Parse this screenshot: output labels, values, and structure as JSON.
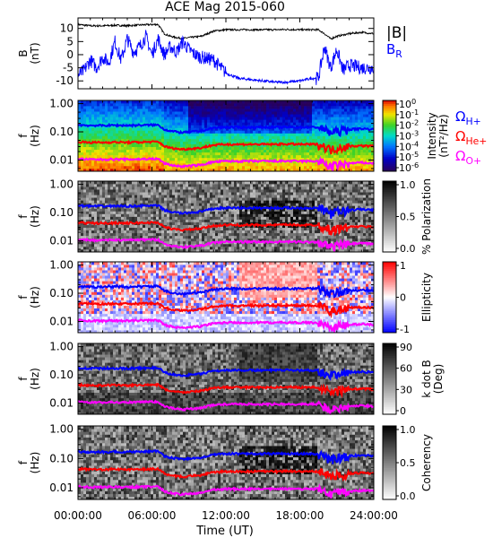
{
  "title": "ACE Mag 2015-060",
  "chart_data": [
    {
      "type": "line",
      "panel": "magnetic-field",
      "title": "ACE Mag 2015-060",
      "ylabel_top": "B",
      "ylabel_bottom": "(nT)",
      "ylim": [
        -13,
        14
      ],
      "yticks": [
        {
          "v": 10,
          "l": "10"
        },
        {
          "v": 5,
          "l": "5"
        },
        {
          "v": 0,
          "l": "0"
        },
        {
          "v": -5,
          "l": "-5"
        },
        {
          "v": -10,
          "l": "-10"
        }
      ],
      "xlim": [
        0,
        24
      ],
      "series": [
        {
          "name": "|B|",
          "color": "#000000",
          "x": [
            0,
            1,
            2,
            3,
            4,
            5,
            6,
            6.5,
            7,
            7.5,
            8,
            8.5,
            9,
            10,
            11,
            12,
            13,
            14,
            15,
            16,
            17,
            18,
            19,
            19.5,
            20,
            20.5,
            21,
            22,
            23,
            24
          ],
          "values": [
            11.5,
            11,
            11,
            11.2,
            11,
            11.3,
            11.5,
            11.5,
            8,
            7,
            6.5,
            6.2,
            6.5,
            7,
            9,
            9.5,
            9.5,
            9.5,
            9.5,
            9.5,
            9.6,
            9.5,
            9.5,
            9.5,
            8,
            6,
            7,
            8,
            8.5,
            8
          ]
        },
        {
          "name": "B_R",
          "color": "#0000ff",
          "x": [
            0,
            0.5,
            1,
            1.5,
            2,
            2.5,
            3,
            3.5,
            4,
            4.5,
            5,
            5.5,
            6,
            6.5,
            7,
            7.5,
            8,
            8.5,
            9,
            9.5,
            10,
            11,
            12,
            13,
            14,
            15,
            16,
            17,
            18,
            19,
            19.5,
            20,
            20.5,
            21,
            21.5,
            22,
            23,
            24
          ],
          "values": [
            -8,
            -6,
            -2,
            -5,
            -1,
            -3,
            5,
            -2,
            6,
            1,
            3,
            7,
            0,
            6,
            0,
            3,
            1,
            5,
            2,
            0,
            -1,
            -2,
            -7,
            -9,
            -9.5,
            -10,
            -10.5,
            -10.5,
            -10,
            -9,
            -9,
            3,
            -5,
            2,
            -6,
            -4,
            -5,
            -5
          ]
        }
      ],
      "legend": [
        {
          "label": "|B|",
          "color": "#000000"
        },
        {
          "label": "B",
          "sub": "R",
          "color": "#0000ff"
        }
      ]
    },
    {
      "type": "heatmap",
      "panel": "intensity",
      "ylabel_top": "f",
      "ylabel_bottom": "(Hz)",
      "yticks": [
        "1.00",
        "0.10",
        "0.01"
      ],
      "colorbar_title": "Intensity",
      "colorbar_unit": "(nT²/Hz)",
      "colorbar_ticks": [
        {
          "b": "10",
          "e": "0"
        },
        {
          "b": "10",
          "e": "-1"
        },
        {
          "b": "10",
          "e": "-2"
        },
        {
          "b": "10",
          "e": "-3"
        },
        {
          "b": "10",
          "e": "-4"
        },
        {
          "b": "10",
          "e": "-5"
        },
        {
          "b": "10",
          "e": "-6"
        }
      ],
      "colormap": "rainbow",
      "legend": [
        {
          "label": "Ω",
          "sub": "H+",
          "color": "#0000ff"
        },
        {
          "label": "Ω",
          "sub": "He+",
          "color": "#ff0000"
        },
        {
          "label": "Ω",
          "sub": "O+",
          "color": "#ff00ff"
        }
      ]
    },
    {
      "type": "heatmap",
      "panel": "polarization",
      "ylabel_top": "f",
      "ylabel_bottom": "(Hz)",
      "yticks": [
        "1.00",
        "0.10",
        "0.01"
      ],
      "colorbar_title": "% Polarization",
      "colorbar_ticks": [
        "1.0",
        "0.5",
        "0.0"
      ],
      "colormap": "gray"
    },
    {
      "type": "heatmap",
      "panel": "ellipticity",
      "ylabel_top": "f",
      "ylabel_bottom": "(Hz)",
      "yticks": [
        "1.00",
        "0.10",
        "0.01"
      ],
      "colorbar_title": "Ellipticity",
      "colorbar_ticks": [
        "1",
        "0",
        "-1"
      ],
      "colormap": "bwr"
    },
    {
      "type": "heatmap",
      "panel": "wave-normal-angle",
      "ylabel_top": "f",
      "ylabel_bottom": "(Hz)",
      "yticks": [
        "1.00",
        "0.10",
        "0.01"
      ],
      "colorbar_title": "k dot B",
      "colorbar_unit": "(Deg)",
      "colorbar_ticks": [
        "90",
        "60",
        "30",
        "0"
      ],
      "colormap": "gray"
    },
    {
      "type": "heatmap",
      "panel": "coherency",
      "ylabel_top": "f",
      "ylabel_bottom": "(Hz)",
      "yticks": [
        "1.00",
        "0.10",
        "0.01"
      ],
      "colorbar_title": "Coherency",
      "colorbar_ticks": [
        "1.0",
        "0.5",
        "0.0"
      ],
      "colormap": "gray"
    }
  ],
  "gyrofrequency_lines": {
    "x": [
      0,
      1,
      2,
      3,
      4,
      5,
      6,
      6.5,
      7,
      7.5,
      8,
      8.5,
      9,
      10,
      11,
      12,
      13,
      14,
      15,
      16,
      17,
      18,
      19,
      19.5,
      20,
      20.5,
      21,
      22,
      23,
      24
    ],
    "H+": [
      0.175,
      0.168,
      0.168,
      0.171,
      0.168,
      0.172,
      0.175,
      0.175,
      0.122,
      0.107,
      0.099,
      0.094,
      0.099,
      0.107,
      0.137,
      0.145,
      0.145,
      0.145,
      0.145,
      0.145,
      0.146,
      0.145,
      0.145,
      0.145,
      0.122,
      0.092,
      0.107,
      0.122,
      0.13,
      0.122
    ],
    "He+": [
      0.044,
      0.042,
      0.042,
      0.043,
      0.042,
      0.043,
      0.044,
      0.044,
      0.031,
      0.027,
      0.025,
      0.024,
      0.025,
      0.027,
      0.034,
      0.036,
      0.036,
      0.036,
      0.036,
      0.036,
      0.037,
      0.036,
      0.036,
      0.036,
      0.031,
      0.023,
      0.027,
      0.031,
      0.032,
      0.031
    ],
    "O+": [
      0.011,
      0.0105,
      0.0105,
      0.0107,
      0.0105,
      0.0108,
      0.011,
      0.011,
      0.0076,
      0.0067,
      0.0062,
      0.0059,
      0.0062,
      0.0067,
      0.0086,
      0.0091,
      0.0091,
      0.0091,
      0.0091,
      0.0091,
      0.0092,
      0.0091,
      0.0091,
      0.0091,
      0.0076,
      0.0057,
      0.0067,
      0.0076,
      0.0081,
      0.0076
    ],
    "colors": {
      "H+": "#0000ff",
      "He+": "#ff0000",
      "O+": "#ff00ff"
    }
  },
  "x_axis": {
    "xlabel": "Time (UT)",
    "ticks": [
      {
        "v": 0,
        "l": "00:00:00"
      },
      {
        "v": 6,
        "l": "06:00:00"
      },
      {
        "v": 12,
        "l": "12:00:00"
      },
      {
        "v": 18,
        "l": "18:00:00"
      },
      {
        "v": 24,
        "l": "24:00:00"
      }
    ]
  }
}
